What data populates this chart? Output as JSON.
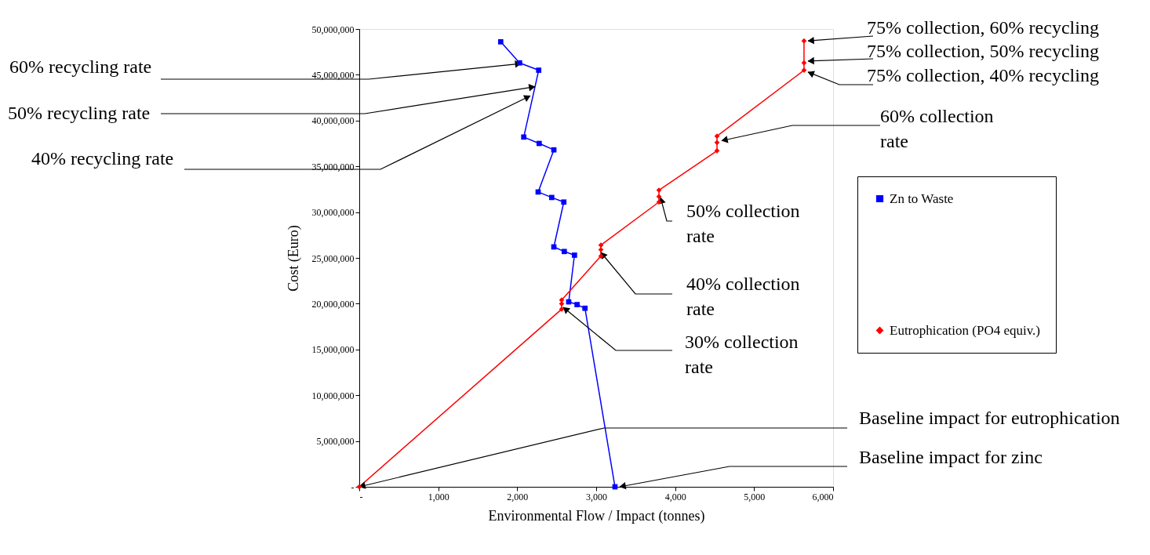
{
  "chart_data": {
    "type": "line",
    "xlabel": "Environmental Flow / Impact (tonnes)",
    "ylabel": "Cost (Euro)",
    "xlim": [
      0,
      6000
    ],
    "xticks": [
      {
        "value": 0,
        "label": "-"
      },
      {
        "value": 1000,
        "label": "1,000"
      },
      {
        "value": 2000,
        "label": "2,000"
      },
      {
        "value": 3000,
        "label": "3,000"
      },
      {
        "value": 4000,
        "label": "4,000"
      },
      {
        "value": 5000,
        "label": "5,000"
      },
      {
        "value": 6000,
        "label": "6,000"
      }
    ],
    "ylim": [
      0,
      50000000
    ],
    "yticks": [
      {
        "value": 0,
        "label": "-"
      },
      {
        "value": 5000000,
        "label": "5,000,000"
      },
      {
        "value": 10000000,
        "label": "10,000,000"
      },
      {
        "value": 15000000,
        "label": "15,000,000"
      },
      {
        "value": 20000000,
        "label": "20,000,000"
      },
      {
        "value": 25000000,
        "label": "25,000,000"
      },
      {
        "value": 30000000,
        "label": "30,000,000"
      },
      {
        "value": 35000000,
        "label": "35,000,000"
      },
      {
        "value": 40000000,
        "label": "40,000,000"
      },
      {
        "value": 45000000,
        "label": "45,000,000"
      },
      {
        "value": 50000000,
        "label": "50,000,000"
      }
    ],
    "grid": false,
    "legend": "right",
    "line_style": "solid",
    "series": [
      {
        "name": "Zn to Waste",
        "color": "#0000ff",
        "marker": "square",
        "x": [
          3238,
          2858,
          2758,
          2652,
          2725,
          2596,
          2464,
          2590,
          2437,
          2265,
          2464,
          2278,
          2083,
          2272,
          2030,
          1791
        ],
        "values": [
          0,
          19500000,
          19900000,
          20200000,
          25300000,
          25700000,
          26200000,
          31100000,
          31600000,
          32200000,
          36800000,
          37500000,
          38200000,
          45500000,
          46300000,
          48600000
        ]
      },
      {
        "name": "Eutrophication (PO4 equiv.)",
        "color": "#ff0000",
        "marker": "diamond",
        "x": [
          0,
          2563,
          2563,
          2563,
          3060,
          3060,
          3060,
          3795,
          3795,
          3795,
          4530,
          4530,
          4530,
          5632,
          5632,
          5632
        ],
        "values": [
          0,
          19400000,
          20000000,
          20400000,
          25200000,
          25900000,
          26400000,
          31100000,
          31700000,
          32400000,
          36700000,
          37600000,
          38300000,
          45500000,
          46300000,
          48700000
        ]
      }
    ],
    "annotations": [
      {
        "text": "60% recycling rate",
        "x": 2050,
        "y": 46230000
      },
      {
        "text": "50% recycling rate",
        "x": 2225,
        "y": 43700000
      },
      {
        "text": "40% recycling rate",
        "x": 2165,
        "y": 42700000
      },
      {
        "text": "75% collection, 60% recycling",
        "x": 5682,
        "y": 48700000
      },
      {
        "text": "75% collection, 50% recycling",
        "x": 5682,
        "y": 46500000
      },
      {
        "text": "75% collection, 40% recycling",
        "x": 5682,
        "y": 45300000
      },
      {
        "text": "60% collection rate",
        "x": 4589,
        "y": 37800000
      },
      {
        "text": "50% collection rate",
        "x": 3815,
        "y": 31600000
      },
      {
        "text": "40% collection rate",
        "x": 3060,
        "y": 25600000
      },
      {
        "text": "30% collection rate",
        "x": 2583,
        "y": 19600000
      },
      {
        "text": "Baseline impact for eutrophication",
        "x": 0,
        "y": 0
      },
      {
        "text": "Baseline impact for zinc",
        "x": 3298,
        "y": 0
      }
    ]
  }
}
